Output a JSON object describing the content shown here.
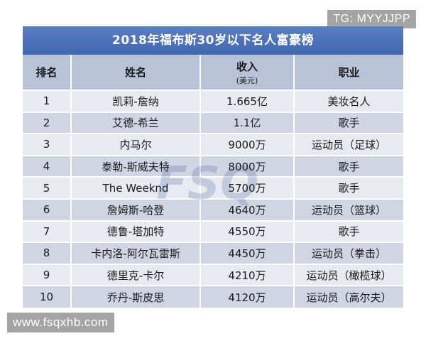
{
  "overlay": {
    "tg": "TG: MYYJJPP",
    "site": "www.fsqxhb.com"
  },
  "table": {
    "title": "2018年福布斯30岁以下名人富豪榜",
    "headers": {
      "rank": "排名",
      "name": "姓名",
      "income": "收入",
      "income_unit": "(美元)",
      "job": "职业"
    },
    "rows": [
      {
        "rank": "1",
        "name": "凯莉-詹纳",
        "income": "1.665亿",
        "job": "美妆名人"
      },
      {
        "rank": "2",
        "name": "艾德-希兰",
        "income": "1.1亿",
        "job": "歌手"
      },
      {
        "rank": "3",
        "name": "内马尔",
        "income": "9000万",
        "job": "运动员（足球）"
      },
      {
        "rank": "4",
        "name": "泰勒-斯威夫特",
        "income": "8000万",
        "job": "歌手"
      },
      {
        "rank": "5",
        "name": "The Weeknd",
        "income": "5700万",
        "job": "歌手"
      },
      {
        "rank": "6",
        "name": "詹姆斯-哈登",
        "income": "4640万",
        "job": "运动员（篮球）"
      },
      {
        "rank": "7",
        "name": "德鲁-塔加特",
        "income": "4550万",
        "job": "歌手"
      },
      {
        "rank": "8",
        "name": "卡内洛-阿尔瓦雷斯",
        "income": "4450万",
        "job": "运动员（拳击）"
      },
      {
        "rank": "9",
        "name": "德里克-卡尔",
        "income": "4210万",
        "job": "运动员（橄榄球）"
      },
      {
        "rank": "10",
        "name": "乔丹-斯皮思",
        "income": "4120万",
        "job": "运动员（高尔夫）"
      }
    ]
  },
  "colors": {
    "title_bg": "#4a6fb8",
    "header_bg": "#b9c3d8",
    "row_light": "#e7eaf1",
    "row_dark": "#cfd5e3"
  }
}
